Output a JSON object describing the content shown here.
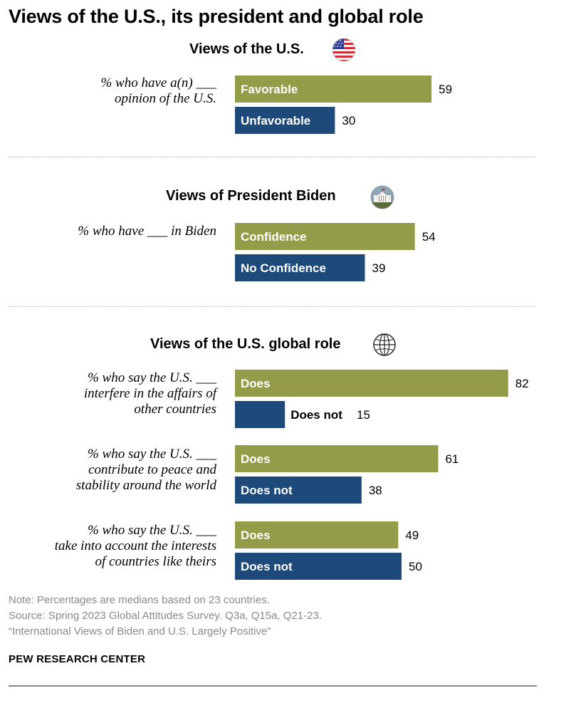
{
  "title": "Views of the U.S., its president and global role",
  "sections": [
    {
      "heading": "Views of the U.S.",
      "icon": "us-flag-icon",
      "questions": [
        {
          "lines": [
            "% who have a(n) ___",
            "opinion of the U.S."
          ]
        }
      ]
    },
    {
      "heading": "Views of President Biden",
      "icon": "white-house-icon",
      "questions": [
        {
          "lines": [
            "% who have ___ in Biden"
          ]
        }
      ]
    },
    {
      "heading": "Views of the U.S. global role",
      "icon": "globe-icon",
      "questions": [
        {
          "lines": [
            "% who say the U.S. ___",
            "interfere in the affairs of",
            "other countries"
          ]
        },
        {
          "lines": [
            "% who say the U.S. ___",
            "contribute to peace and",
            "stability around the world"
          ]
        },
        {
          "lines": [
            "% who say the U.S. ___",
            "take into account the interests",
            "of countries like theirs"
          ]
        }
      ]
    }
  ],
  "chart_data": {
    "type": "bar",
    "orientation": "horizontal",
    "unit": "%",
    "colors": {
      "positive": "#949c4a",
      "negative": "#1d4a7a"
    },
    "groups": [
      {
        "section": 0,
        "bars": [
          {
            "label": "Favorable",
            "value": 59,
            "color": "#949c4a"
          },
          {
            "label": "Unfavorable",
            "value": 30,
            "color": "#1d4a7a"
          }
        ]
      },
      {
        "section": 1,
        "bars": [
          {
            "label": "Confidence",
            "value": 54,
            "color": "#949c4a"
          },
          {
            "label": "No Confidence",
            "value": 39,
            "color": "#1d4a7a"
          }
        ]
      },
      {
        "section": 2,
        "bars": [
          {
            "label": "Does",
            "value": 82,
            "color": "#949c4a"
          },
          {
            "label": "Does not",
            "value": 15,
            "color": "#1d4a7a"
          }
        ]
      },
      {
        "section": 2,
        "bars": [
          {
            "label": "Does",
            "value": 61,
            "color": "#949c4a"
          },
          {
            "label": "Does not",
            "value": 38,
            "color": "#1d4a7a"
          }
        ]
      },
      {
        "section": 2,
        "bars": [
          {
            "label": "Does",
            "value": 49,
            "color": "#949c4a"
          },
          {
            "label": "Does not",
            "value": 50,
            "color": "#1d4a7a"
          }
        ]
      }
    ]
  },
  "notes": {
    "note": "Note: Percentages are medians based on 23 countries.",
    "source": "Source: Spring 2023 Global Attitudes Survey. Q3a, Q15a, Q21-23.",
    "report": "“International Views of Biden and U.S. Largely Positive”"
  },
  "brand": "PEW RESEARCH CENTER"
}
